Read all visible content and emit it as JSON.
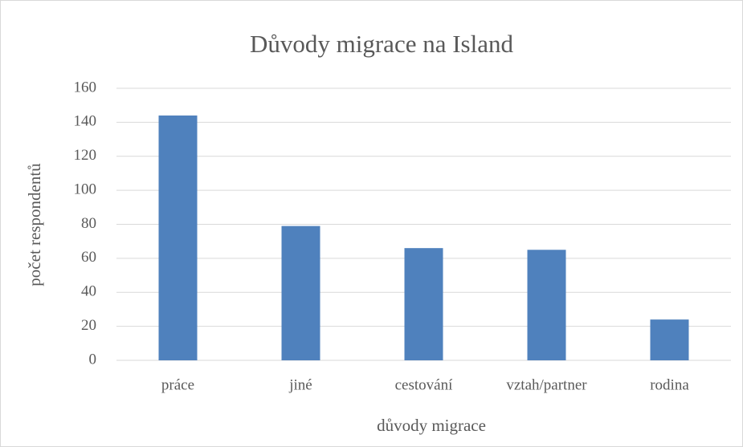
{
  "chart_data": {
    "type": "bar",
    "title": "Důvody migrace na Island",
    "x_label": "důvody migrace",
    "y_label": "počet respondentů",
    "categories": [
      "práce",
      "jiné",
      "cestování",
      "vztah/partner",
      "rodina"
    ],
    "values": [
      144,
      79,
      66,
      65,
      24
    ],
    "color": "#4f81bd",
    "ylim": [
      0,
      160
    ],
    "yticks": [
      0,
      20,
      40,
      60,
      80,
      100,
      120,
      140,
      160
    ],
    "grid": true
  }
}
